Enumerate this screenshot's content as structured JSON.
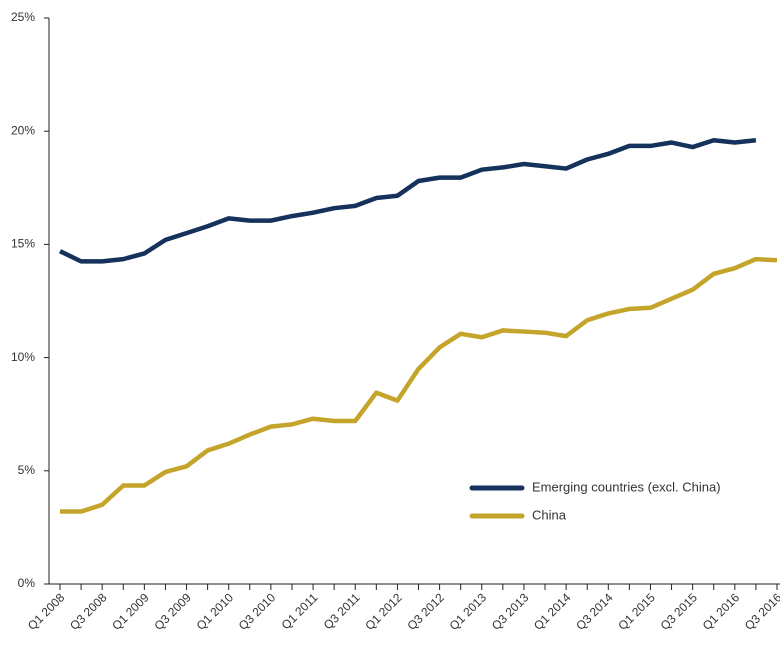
{
  "chart_data": {
    "type": "line",
    "categories": [
      "Q1 2008",
      null,
      "Q3 2008",
      null,
      "Q1 2009",
      null,
      "Q3 2009",
      null,
      "Q1 2010",
      null,
      "Q3 2010",
      null,
      "Q1 2011",
      null,
      "Q3 2011",
      null,
      "Q1 2012",
      null,
      "Q3 2012",
      null,
      "Q1 2013",
      null,
      "Q3 2013",
      null,
      "Q1 2014",
      null,
      "Q3 2014",
      null,
      "Q1 2015",
      null,
      "Q3 2015",
      null,
      "Q1 2016",
      null,
      "Q3 2016"
    ],
    "series": [
      {
        "name": "Emerging countries (excl. China)",
        "color": "#14325c",
        "values": [
          14.7,
          14.25,
          14.25,
          14.35,
          14.6,
          15.2,
          15.5,
          15.8,
          16.15,
          16.05,
          16.05,
          16.25,
          16.4,
          16.6,
          16.7,
          17.05,
          17.15,
          17.8,
          17.95,
          17.95,
          18.3,
          18.4,
          18.55,
          18.45,
          18.35,
          18.75,
          19.0,
          19.35,
          19.35,
          19.5,
          19.3,
          19.6,
          19.5,
          19.6,
          null
        ]
      },
      {
        "name": "China",
        "color": "#c4a42a",
        "values": [
          3.2,
          3.2,
          3.5,
          4.35,
          4.35,
          4.95,
          5.2,
          5.9,
          6.2,
          6.6,
          6.95,
          7.05,
          7.3,
          7.2,
          7.2,
          8.45,
          8.1,
          9.5,
          10.45,
          11.05,
          10.9,
          11.2,
          11.15,
          11.1,
          10.95,
          11.65,
          11.95,
          12.15,
          12.2,
          12.6,
          13.0,
          13.7,
          13.95,
          14.35,
          14.3
        ]
      }
    ],
    "ylim": [
      0,
      25
    ],
    "yticks": [
      {
        "value": 0,
        "label": "0%"
      },
      {
        "value": 5,
        "label": "5%"
      },
      {
        "value": 10,
        "label": "10%"
      },
      {
        "value": 15,
        "label": "15%"
      },
      {
        "value": 20,
        "label": "20%"
      },
      {
        "value": 25,
        "label": "25%"
      }
    ],
    "legend": "lower right"
  }
}
